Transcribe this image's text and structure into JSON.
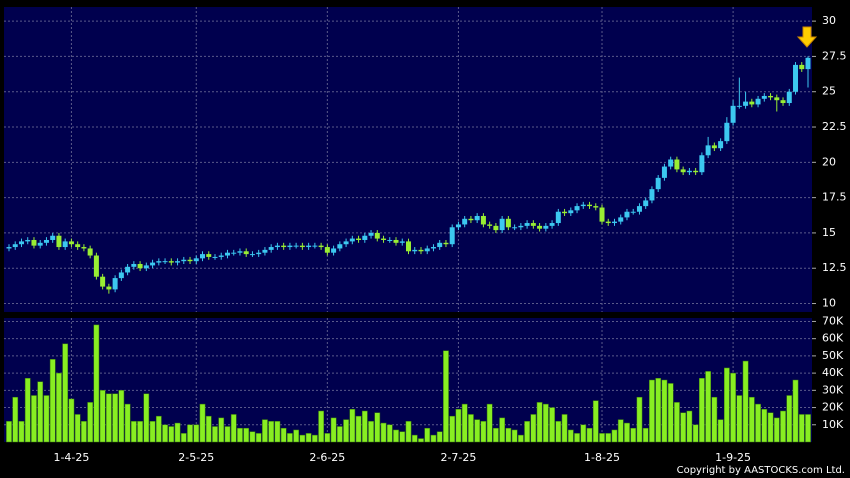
{
  "copyright": "Copyright by AASTOCKS.com Ltd.",
  "chart_data": [
    {
      "type": "candlestick",
      "up_color": "#3cc8f0",
      "down_color": "#99ee33",
      "ylim": [
        9.4,
        31
      ],
      "yticks": [
        10,
        12.5,
        15,
        17.5,
        20,
        22.5,
        25,
        27.5,
        30
      ],
      "grid": true,
      "open": [
        13.9,
        14.0,
        14.2,
        14.4,
        14.5,
        14.1,
        14.3,
        14.5,
        14.8,
        14.0,
        14.4,
        14.2,
        14.0,
        13.9,
        13.4,
        11.9,
        11.2,
        11.0,
        11.8,
        12.2,
        12.6,
        12.8,
        12.5,
        12.7,
        12.9,
        13.0,
        13.0,
        12.9,
        13.0,
        13.1,
        13.0,
        13.2,
        13.5,
        13.3,
        13.3,
        13.4,
        13.6,
        13.6,
        13.7,
        13.5,
        13.5,
        13.6,
        13.8,
        14.0,
        14.1,
        14.0,
        14.1,
        14.1,
        14.0,
        14.1,
        14.1,
        14.0,
        13.6,
        13.9,
        14.2,
        14.4,
        14.6,
        14.5,
        14.8,
        15.0,
        14.6,
        14.5,
        14.5,
        14.3,
        14.4,
        13.7,
        13.8,
        13.7,
        13.9,
        14.0,
        14.3,
        14.2,
        15.4,
        15.6,
        16.0,
        15.9,
        16.2,
        15.6,
        15.5,
        15.2,
        16.0,
        15.4,
        15.4,
        15.5,
        15.7,
        15.5,
        15.3,
        15.5,
        15.7,
        16.5,
        16.4,
        16.6,
        16.9,
        17.0,
        16.9,
        16.8,
        15.8,
        15.7,
        15.8,
        16.1,
        16.5,
        16.5,
        16.9,
        17.3,
        18.1,
        18.9,
        19.7,
        20.2,
        19.5,
        19.3,
        19.4,
        19.3,
        20.5,
        21.2,
        21.0,
        21.5,
        22.8,
        24.0,
        24.0,
        24.3,
        24.1,
        24.5,
        24.7,
        24.6,
        24.4,
        24.2,
        25.0,
        26.9,
        26.6
      ],
      "high": [
        14.2,
        14.4,
        14.6,
        14.7,
        14.7,
        14.5,
        14.7,
        15.0,
        15.0,
        14.6,
        14.6,
        14.4,
        14.2,
        14.1,
        13.6,
        12.1,
        11.4,
        12.0,
        12.4,
        12.8,
        13.0,
        13.0,
        12.9,
        13.1,
        13.2,
        13.2,
        13.2,
        13.2,
        13.3,
        13.3,
        13.4,
        13.7,
        13.7,
        13.5,
        13.6,
        13.8,
        13.8,
        13.9,
        13.9,
        13.7,
        13.8,
        14.0,
        14.2,
        14.3,
        14.3,
        14.3,
        14.3,
        14.3,
        14.3,
        14.3,
        14.3,
        14.2,
        14.1,
        14.4,
        14.6,
        14.8,
        14.8,
        15.0,
        15.2,
        15.2,
        14.8,
        14.7,
        14.7,
        14.6,
        14.6,
        14.0,
        14.0,
        14.1,
        14.2,
        14.5,
        14.5,
        15.6,
        15.8,
        16.2,
        16.2,
        16.4,
        16.4,
        15.8,
        15.7,
        16.2,
        16.2,
        15.6,
        15.7,
        15.9,
        15.9,
        15.7,
        15.7,
        15.9,
        16.7,
        16.7,
        16.8,
        17.1,
        17.2,
        17.2,
        17.1,
        17.0,
        16.0,
        16.0,
        16.3,
        16.7,
        16.7,
        17.1,
        17.5,
        18.3,
        19.1,
        19.9,
        20.4,
        20.4,
        19.7,
        19.6,
        19.6,
        20.7,
        21.8,
        21.4,
        21.7,
        23.2,
        24.4,
        26.0,
        25.0,
        24.5,
        24.7,
        24.9,
        24.9,
        24.8,
        24.6,
        25.2,
        27.1,
        27.1,
        27.5
      ],
      "low": [
        13.7,
        13.8,
        14.0,
        14.2,
        13.9,
        13.9,
        14.1,
        14.3,
        13.8,
        13.8,
        14.0,
        13.8,
        13.7,
        13.2,
        11.7,
        11.0,
        10.7,
        10.8,
        11.6,
        12.0,
        12.4,
        12.3,
        12.3,
        12.5,
        12.7,
        12.8,
        12.7,
        12.7,
        12.8,
        12.8,
        12.8,
        13.0,
        13.1,
        13.1,
        13.1,
        13.2,
        13.4,
        13.4,
        13.3,
        13.3,
        13.3,
        13.4,
        13.6,
        13.8,
        13.8,
        13.8,
        13.9,
        13.8,
        13.8,
        13.9,
        13.8,
        13.4,
        13.4,
        13.7,
        14.0,
        14.2,
        14.3,
        14.3,
        14.6,
        14.4,
        14.3,
        14.3,
        14.1,
        14.1,
        13.5,
        13.5,
        13.5,
        13.5,
        13.7,
        13.8,
        14.0,
        14.0,
        15.2,
        15.4,
        15.7,
        15.7,
        15.4,
        15.3,
        15.0,
        15.0,
        15.2,
        15.2,
        15.2,
        15.3,
        15.3,
        15.1,
        15.1,
        15.3,
        15.5,
        16.2,
        16.2,
        16.4,
        16.7,
        16.7,
        16.6,
        15.6,
        15.5,
        15.5,
        15.6,
        15.9,
        16.3,
        16.3,
        16.7,
        17.1,
        17.9,
        18.7,
        19.5,
        19.3,
        19.1,
        19.1,
        19.1,
        19.1,
        20.3,
        20.8,
        20.8,
        21.3,
        22.6,
        23.8,
        23.8,
        23.9,
        23.9,
        24.3,
        24.4,
        23.6,
        24.0,
        24.0,
        24.8,
        26.4,
        25.3
      ],
      "close": [
        14.0,
        14.2,
        14.4,
        14.5,
        14.1,
        14.3,
        14.5,
        14.8,
        14.0,
        14.4,
        14.2,
        14.0,
        13.9,
        13.4,
        11.9,
        11.2,
        11.0,
        11.8,
        12.2,
        12.6,
        12.8,
        12.5,
        12.7,
        12.9,
        13.0,
        13.0,
        12.9,
        13.0,
        13.1,
        13.0,
        13.2,
        13.5,
        13.3,
        13.3,
        13.4,
        13.6,
        13.6,
        13.7,
        13.5,
        13.5,
        13.6,
        13.8,
        14.0,
        14.1,
        14.0,
        14.1,
        14.1,
        14.0,
        14.1,
        14.1,
        14.0,
        13.6,
        13.9,
        14.2,
        14.4,
        14.6,
        14.5,
        14.8,
        15.0,
        14.6,
        14.5,
        14.5,
        14.3,
        14.4,
        13.7,
        13.8,
        13.7,
        13.9,
        14.0,
        14.3,
        14.2,
        15.4,
        15.6,
        16.0,
        15.9,
        16.2,
        15.6,
        15.5,
        15.2,
        16.0,
        15.4,
        15.4,
        15.5,
        15.7,
        15.5,
        15.3,
        15.5,
        15.7,
        16.5,
        16.4,
        16.6,
        16.9,
        17.0,
        16.9,
        16.8,
        15.8,
        15.7,
        15.8,
        16.1,
        16.5,
        16.5,
        16.9,
        17.3,
        18.1,
        18.9,
        19.7,
        20.2,
        19.5,
        19.3,
        19.4,
        19.3,
        20.5,
        21.2,
        21.0,
        21.5,
        22.8,
        24.0,
        24.0,
        24.3,
        24.1,
        24.5,
        24.7,
        24.6,
        24.4,
        24.2,
        25.0,
        26.9,
        26.6,
        27.4
      ]
    },
    {
      "type": "bar",
      "color": "#88ee22",
      "ylim": [
        0,
        72000
      ],
      "grid": true,
      "yticks": [
        {
          "value": 10000,
          "label": "10K"
        },
        {
          "value": 20000,
          "label": "20K"
        },
        {
          "value": 30000,
          "label": "30K"
        },
        {
          "value": 40000,
          "label": "40K"
        },
        {
          "value": 50000,
          "label": "50K"
        },
        {
          "value": 60000,
          "label": "60K"
        },
        {
          "value": 70000,
          "label": "70K"
        }
      ],
      "categories": [
        null,
        null,
        null,
        null,
        null,
        null,
        null,
        null,
        null,
        null,
        "1-4-25",
        null,
        null,
        null,
        null,
        null,
        null,
        null,
        null,
        null,
        null,
        null,
        null,
        null,
        null,
        null,
        null,
        null,
        null,
        null,
        "2-5-25",
        null,
        null,
        null,
        null,
        null,
        null,
        null,
        null,
        null,
        null,
        null,
        null,
        null,
        null,
        null,
        null,
        null,
        null,
        null,
        null,
        "2-6-25",
        null,
        null,
        null,
        null,
        null,
        null,
        null,
        null,
        null,
        null,
        null,
        null,
        null,
        null,
        null,
        null,
        null,
        null,
        null,
        null,
        "2-7-25",
        null,
        null,
        null,
        null,
        null,
        null,
        null,
        null,
        null,
        null,
        null,
        null,
        null,
        null,
        null,
        null,
        null,
        null,
        null,
        null,
        null,
        null,
        "1-8-25",
        null,
        null,
        null,
        null,
        null,
        null,
        null,
        null,
        null,
        null,
        null,
        null,
        null,
        null,
        null,
        null,
        null,
        null,
        null,
        null,
        "1-9-25",
        null,
        null,
        null,
        null,
        null,
        null,
        null,
        null,
        null,
        null,
        null,
        null
      ],
      "values": [
        12000,
        26000,
        12000,
        37000,
        27000,
        35000,
        27000,
        48000,
        40000,
        57000,
        25000,
        16000,
        12000,
        23000,
        68000,
        30000,
        28000,
        28000,
        30000,
        22000,
        12000,
        12000,
        28000,
        12000,
        15000,
        10000,
        9000,
        11000,
        5000,
        10000,
        10000,
        22000,
        15000,
        9000,
        14000,
        9000,
        16000,
        8000,
        8000,
        6000,
        5000,
        13000,
        12000,
        12000,
        8000,
        5000,
        7000,
        4000,
        5000,
        4000,
        18000,
        5000,
        14000,
        9000,
        13000,
        19000,
        15000,
        18000,
        12000,
        17000,
        11000,
        10000,
        7000,
        6000,
        12000,
        4000,
        2000,
        8000,
        4000,
        6000,
        53000,
        15000,
        19000,
        22000,
        16000,
        13000,
        12000,
        22000,
        8000,
        14000,
        8000,
        7000,
        4000,
        12000,
        16000,
        23000,
        22000,
        20000,
        12000,
        16000,
        7000,
        5000,
        10000,
        8000,
        24000,
        5000,
        5000,
        7000,
        13000,
        11000,
        8000,
        26000,
        8000,
        36000,
        37000,
        36000,
        34000,
        23000,
        17000,
        18000,
        10000,
        37000,
        41000,
        26000,
        13000,
        43000,
        40000,
        27000,
        47000,
        26000,
        22000,
        19000,
        17000,
        14000,
        18000,
        27000,
        36000,
        16000,
        16000
      ]
    }
  ]
}
